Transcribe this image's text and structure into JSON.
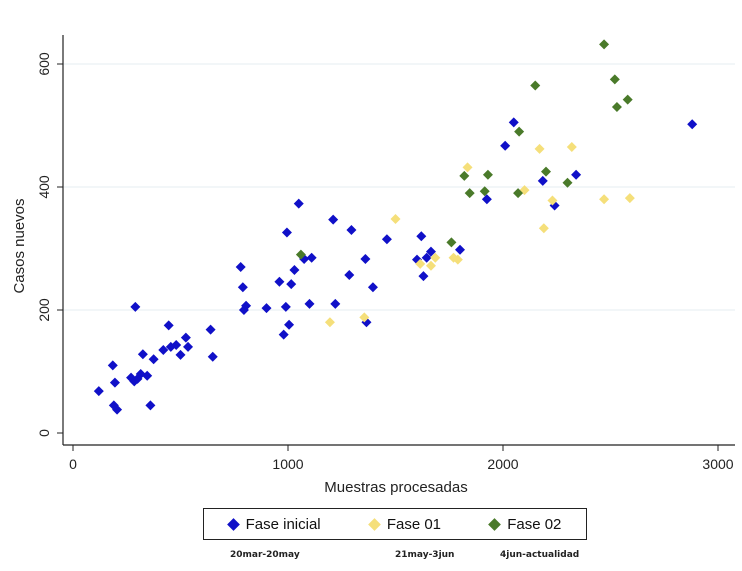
{
  "chart_data": {
    "type": "scatter",
    "xlabel": "Muestras procesadas",
    "ylabel": "Casos nuevos",
    "xlim": [
      0,
      3000
    ],
    "ylim": [
      0,
      650
    ],
    "x_ticks": [
      0,
      1000,
      2000,
      3000
    ],
    "y_ticks": [
      0,
      200,
      400,
      600
    ],
    "grid": "horizontal",
    "legend_position": "bottom",
    "series": [
      {
        "name": "Fase inicial",
        "color": "#1010c8",
        "points": [
          [
            120,
            68
          ],
          [
            185,
            110
          ],
          [
            195,
            82
          ],
          [
            190,
            45
          ],
          [
            205,
            38
          ],
          [
            290,
            205
          ],
          [
            270,
            90
          ],
          [
            285,
            84
          ],
          [
            300,
            88
          ],
          [
            315,
            96
          ],
          [
            325,
            128
          ],
          [
            345,
            93
          ],
          [
            360,
            45
          ],
          [
            375,
            120
          ],
          [
            420,
            135
          ],
          [
            445,
            175
          ],
          [
            455,
            140
          ],
          [
            480,
            143
          ],
          [
            500,
            127
          ],
          [
            525,
            155
          ],
          [
            535,
            140
          ],
          [
            640,
            168
          ],
          [
            650,
            124
          ],
          [
            780,
            270
          ],
          [
            790,
            237
          ],
          [
            795,
            200
          ],
          [
            805,
            207
          ],
          [
            900,
            203
          ],
          [
            960,
            246
          ],
          [
            980,
            160
          ],
          [
            990,
            205
          ],
          [
            995,
            326
          ],
          [
            1005,
            176
          ],
          [
            1015,
            242
          ],
          [
            1030,
            265
          ],
          [
            1050,
            373
          ],
          [
            1075,
            283
          ],
          [
            1100,
            210
          ],
          [
            1110,
            285
          ],
          [
            1210,
            347
          ],
          [
            1220,
            210
          ],
          [
            1285,
            257
          ],
          [
            1295,
            330
          ],
          [
            1360,
            283
          ],
          [
            1365,
            180
          ],
          [
            1395,
            237
          ],
          [
            1460,
            315
          ],
          [
            1600,
            282
          ],
          [
            1620,
            320
          ],
          [
            1630,
            255
          ],
          [
            1645,
            285
          ],
          [
            1665,
            295
          ],
          [
            1800,
            298
          ],
          [
            1925,
            380
          ],
          [
            2010,
            467
          ],
          [
            2050,
            505
          ],
          [
            2185,
            410
          ],
          [
            2240,
            370
          ],
          [
            2340,
            420
          ],
          [
            2880,
            502
          ]
        ]
      },
      {
        "name": "Fase 01",
        "color": "#f5df7a",
        "points": [
          [
            1195,
            180
          ],
          [
            1355,
            188
          ],
          [
            1500,
            348
          ],
          [
            1615,
            275
          ],
          [
            1665,
            272
          ],
          [
            1685,
            285
          ],
          [
            1770,
            285
          ],
          [
            1790,
            282
          ],
          [
            1835,
            432
          ],
          [
            2100,
            395
          ],
          [
            2170,
            462
          ],
          [
            2190,
            333
          ],
          [
            2230,
            378
          ],
          [
            2320,
            465
          ],
          [
            2470,
            380
          ],
          [
            2590,
            382
          ]
        ]
      },
      {
        "name": "Fase 02",
        "color": "#4a7a2a",
        "points": [
          [
            1060,
            290
          ],
          [
            1760,
            310
          ],
          [
            1820,
            418
          ],
          [
            1845,
            390
          ],
          [
            1915,
            393
          ],
          [
            1930,
            420
          ],
          [
            2070,
            390
          ],
          [
            2075,
            490
          ],
          [
            2150,
            565
          ],
          [
            2200,
            425
          ],
          [
            2300,
            407
          ],
          [
            2470,
            632
          ],
          [
            2520,
            575
          ],
          [
            2530,
            530
          ],
          [
            2580,
            542
          ]
        ]
      }
    ]
  },
  "phase_notes": [
    "20mar-20may",
    "21may-3jun",
    "4jun-actualidad"
  ]
}
